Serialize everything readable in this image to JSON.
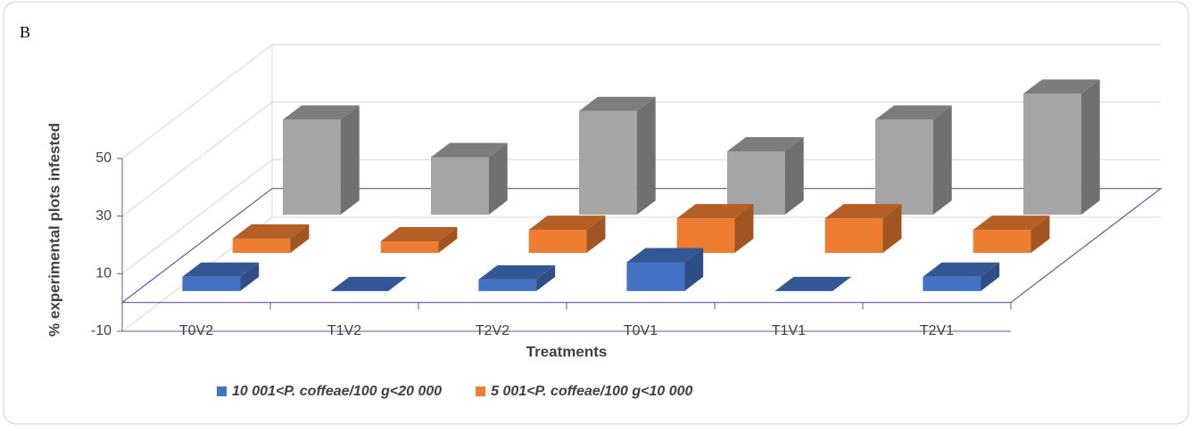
{
  "chart_data": {
    "type": "bar3d",
    "title": "B",
    "y_label": "% experimental plots infested",
    "x_label": "Treatments",
    "categories": [
      "T0V2",
      "T1V2",
      "T2V2",
      "T0V1",
      "T1V1",
      "T2V1"
    ],
    "series": [
      {
        "name": "10 001<P. coffeae/100 g<20 000",
        "color": "#4472c4",
        "values": [
          5,
          0,
          4,
          10,
          0,
          5
        ]
      },
      {
        "name": "5 001<P. coffeae/100 g<10 000",
        "color": "#ed7d31",
        "values": [
          5,
          4,
          8,
          12,
          12,
          8
        ]
      },
      {
        "color": "#a5a5a5",
        "values": [
          33,
          20,
          36,
          22,
          33,
          42
        ]
      }
    ],
    "ylim": [
      -10,
      50
    ],
    "yticks": [
      -10,
      10,
      30,
      50
    ],
    "grid": true
  }
}
